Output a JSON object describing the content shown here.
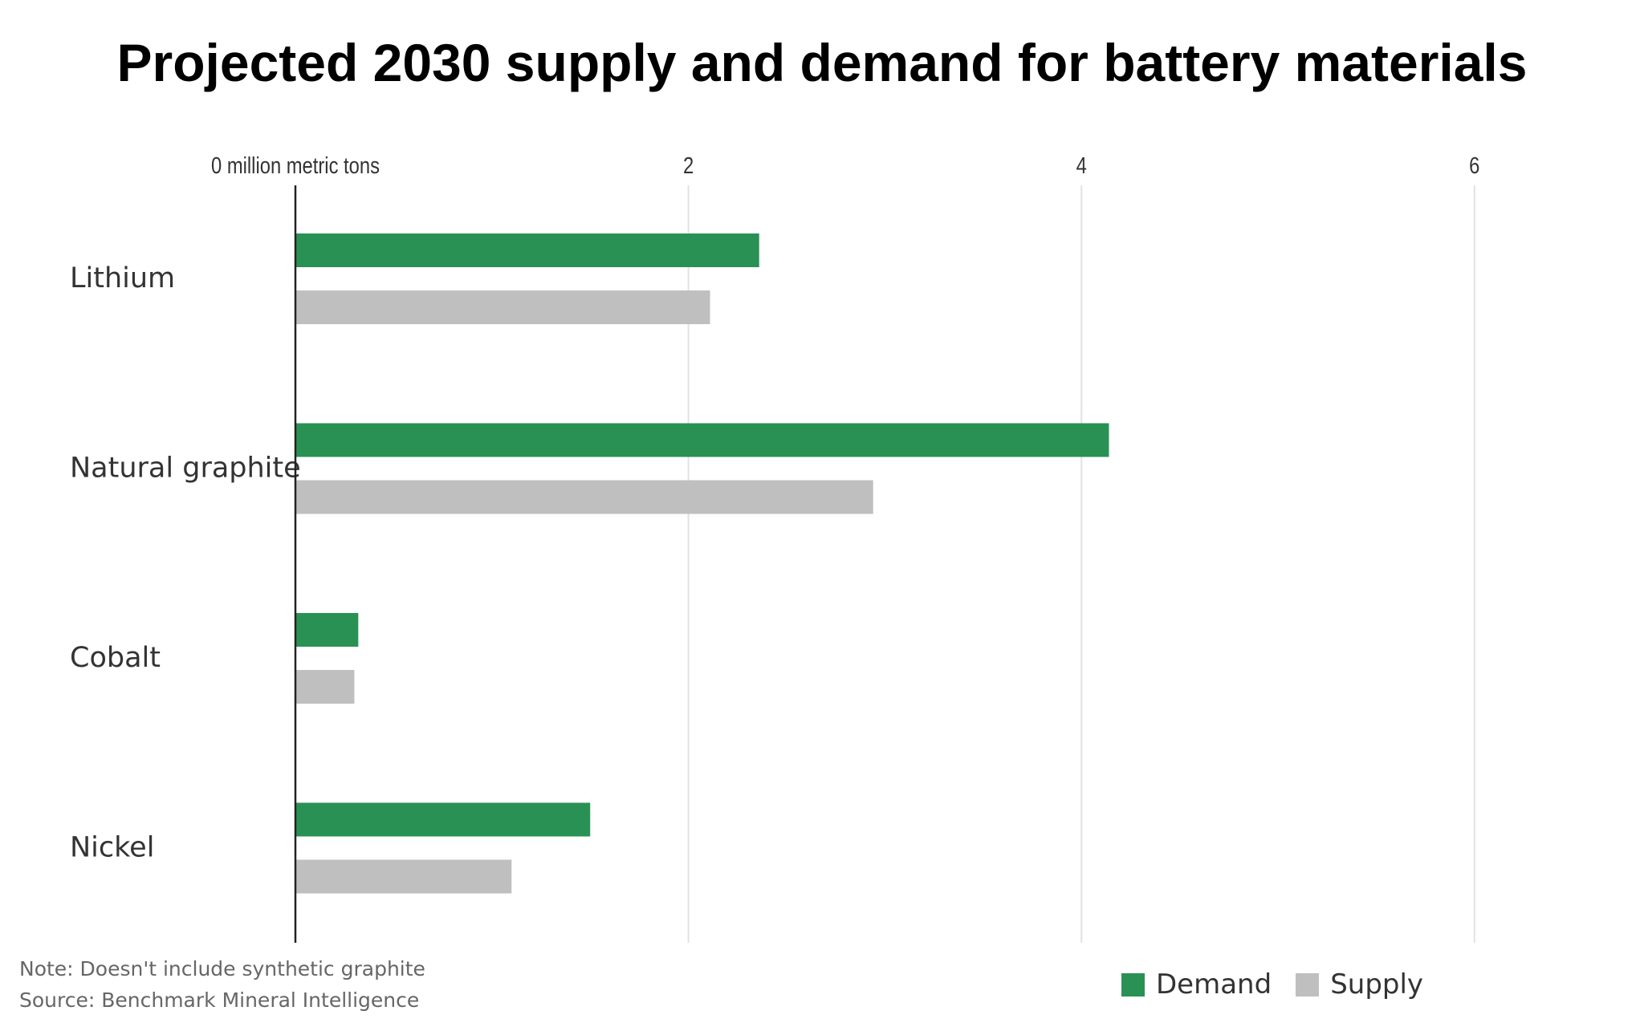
{
  "chart_data": {
    "type": "bar",
    "orientation": "horizontal",
    "title": "Projected 2030 supply and demand for battery materials",
    "categories": [
      "Lithium",
      "Natural graphite",
      "Cobalt",
      "Nickel"
    ],
    "series": [
      {
        "name": "Demand",
        "color": "#2a9154",
        "values": [
          2.36,
          4.14,
          0.32,
          1.5
        ]
      },
      {
        "name": "Supply",
        "color": "#bfbfbf",
        "values": [
          2.11,
          2.94,
          0.3,
          1.1
        ]
      }
    ],
    "xlim": [
      0,
      6.6
    ],
    "xticks": [
      0,
      2,
      4,
      6
    ],
    "xtick_labels": [
      "0 million metric tons",
      "2",
      "4",
      "6"
    ],
    "grid": "vertical",
    "legend": "bottom-right",
    "note": "Note: Doesn't include synthetic graphite",
    "source": "Source: Benchmark Mineral Intelligence"
  }
}
